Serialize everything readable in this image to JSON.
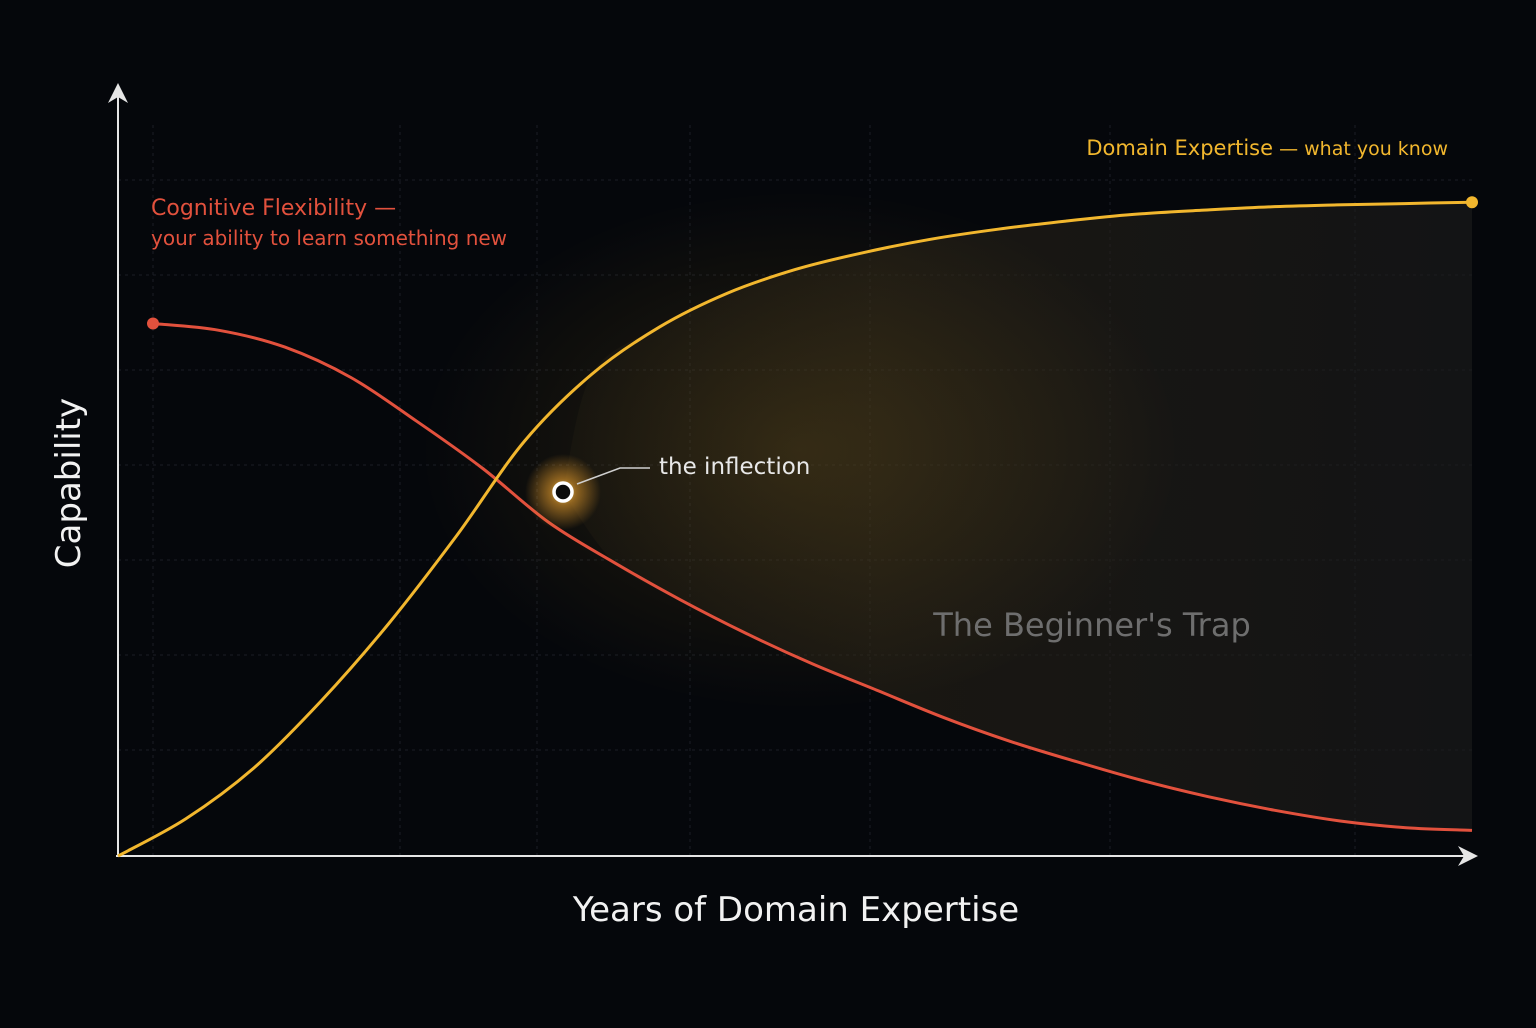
{
  "colors": {
    "background": "#05070b",
    "axis": "#e6e6e6",
    "grid": "#1a1d24",
    "flexibility": "#e2513d",
    "expertise": "#f2b72e",
    "inflection_label": "#e8e8e8",
    "trap_label": "#6e6e6e"
  },
  "chart_data": {
    "type": "line",
    "title": "",
    "xlabel": "Years of Domain Expertise",
    "ylabel": "Capability",
    "xlim": [
      0,
      10
    ],
    "ylim": [
      0,
      10
    ],
    "grid": true,
    "series": [
      {
        "key": "flexibility",
        "name_lines": [
          "Cognitive Flexibility —",
          "your ability to learn something new"
        ],
        "color": "#e2513d",
        "x": [
          0,
          0.5,
          1,
          1.5,
          2,
          2.5,
          3,
          3.5,
          4,
          4.5,
          5,
          5.5,
          6,
          6.5,
          7,
          7.5,
          8,
          8.5,
          9,
          9.5,
          10
        ],
        "y": [
          7.9,
          7.8,
          7.55,
          7.1,
          6.45,
          5.75,
          4.95,
          4.35,
          3.8,
          3.3,
          2.85,
          2.45,
          2.05,
          1.7,
          1.4,
          1.12,
          0.88,
          0.68,
          0.52,
          0.42,
          0.38
        ]
      },
      {
        "key": "expertise",
        "name_main": "Domain Expertise",
        "name_sub": " — what you know",
        "color": "#f2b72e",
        "x": [
          0,
          0.5,
          1,
          1.5,
          2,
          2.5,
          3,
          3.5,
          4,
          4.5,
          5,
          5.5,
          6,
          6.5,
          7,
          7.5,
          8,
          8.5,
          9,
          9.5,
          10
        ],
        "y": [
          0.0,
          0.55,
          1.3,
          2.3,
          3.45,
          4.75,
          6.15,
          7.15,
          7.85,
          8.35,
          8.7,
          8.95,
          9.15,
          9.3,
          9.42,
          9.52,
          9.58,
          9.63,
          9.66,
          9.68,
          9.7
        ]
      }
    ],
    "annotations": {
      "inflection": {
        "label": "the inflection",
        "x": 3.3,
        "y": 5.1
      },
      "region": {
        "label": "The Beginner's Trap",
        "x": 7.3,
        "y": 3.65
      }
    }
  }
}
